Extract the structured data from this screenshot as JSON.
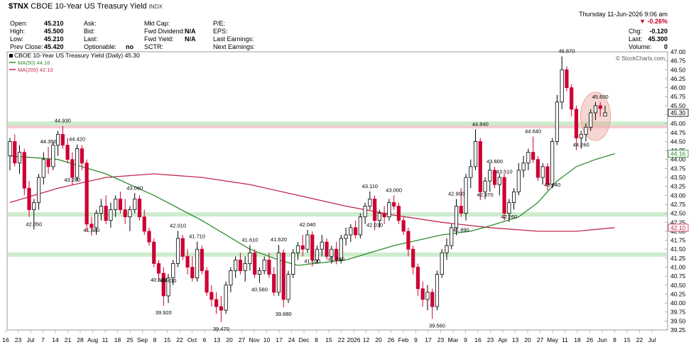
{
  "header": {
    "symbol": "$TNX",
    "name": "CBOE 10-Year US Treasury Yield",
    "exchange": "INDX",
    "date": "Thursday   11-Jun-2026  9:06 am",
    "open_label": "Open:",
    "open": "45.210",
    "high_label": "High:",
    "high": "45.500",
    "low_label": "Low:",
    "low": "45.210",
    "prev_label": "Prev Close:",
    "prev": "45.420",
    "ask_label": "Ask:",
    "bid_label": "Bid:",
    "last_label": "Last:",
    "optionable_label": "Optionable:",
    "optionable": "no",
    "mktcap_label": "Mkt Cap:",
    "fwddiv_label": "Fwd Dividend:",
    "fwddiv": "N/A",
    "fwdyield_label": "Fwd Yield:",
    "fwdyield": "N/A",
    "sctr_label": "SCTR:",
    "pe_label": "P/E:",
    "eps_label": "EPS:",
    "lastearn_label": "Last Earnings:",
    "nextearn_label": "Next Earnings:",
    "change_pct": "▼ -0.26%",
    "chg_label": "Chg:",
    "chg": "-0.120",
    "last2_label": "Last:",
    "last2": "45.300",
    "volume_label": "Volume:",
    "volume": "0",
    "watermark": "© StockCharts.com"
  },
  "colors": {
    "up": "#000000",
    "down": "#cc0033",
    "ma50": "#2e8b2e",
    "ma200": "#c0284c",
    "resistance_band": "#f7c9cf",
    "support_band": "#cdeccd",
    "highlight_circle": "#e8a59b"
  },
  "chart_data": {
    "type": "candlestick",
    "title": "CBOE 10-Year US Treasury Yield (Daily) 45.30",
    "legend": [
      {
        "name": "MA(50) 44.16",
        "color": "#2e8b2e"
      },
      {
        "name": "MA(200) 42.10",
        "color": "#c0284c"
      }
    ],
    "ylim": [
      39.25,
      47.0
    ],
    "y_ticks": [
      "39.25",
      "39.50",
      "39.75",
      "40.00",
      "40.25",
      "40.50",
      "40.75",
      "41.00",
      "41.25",
      "41.50",
      "41.75",
      "42.00",
      "42.25",
      "42.50",
      "42.75",
      "43.00",
      "43.25",
      "43.50",
      "43.75",
      "44.00",
      "44.25",
      "44.50",
      "44.75",
      "45.00",
      "45.25",
      "45.50",
      "45.75",
      "46.00",
      "46.25",
      "46.50",
      "46.75",
      "47.00"
    ],
    "x_ticks": [
      "16",
      "23",
      "Jul",
      "7",
      "14",
      "21",
      "28",
      "Aug",
      "11",
      "18",
      "25",
      "Sep",
      "8",
      "15",
      "22",
      "Oct",
      "6",
      "13",
      "20",
      "27",
      "Nov",
      "10",
      "17",
      "24",
      "Dec",
      "8",
      "15",
      "22",
      "2026",
      "12",
      "20",
      "26",
      "Feb",
      "9",
      "17",
      "23",
      "Mar",
      "9",
      "16",
      "23",
      "Apr",
      "13",
      "20",
      "27",
      "May",
      "11",
      "18",
      "26",
      "Jun",
      "8",
      "15",
      "22",
      "Jul"
    ],
    "horizontal_bands": [
      {
        "level": 44.93,
        "type": "resistance"
      },
      {
        "level": 42.47,
        "type": "support"
      },
      {
        "level": 41.35,
        "type": "support"
      },
      {
        "level": 45.0,
        "type": "support"
      }
    ],
    "last_value_labels": [
      {
        "value": "45.30",
        "series": "price"
      },
      {
        "value": "44.16",
        "series": "MA(50)"
      },
      {
        "value": "42.10",
        "series": "MA(200)"
      }
    ],
    "annotations": [
      {
        "text": "44.930",
        "bar": 11,
        "price": 44.93
      },
      {
        "text": "44.350",
        "bar": 8,
        "price": 44.35
      },
      {
        "text": "44.420",
        "bar": 14,
        "price": 44.42
      },
      {
        "text": "43.280",
        "bar": 13,
        "price": 43.28
      },
      {
        "text": "42.050",
        "bar": 5,
        "price": 42.05
      },
      {
        "text": "43.060",
        "bar": 26,
        "price": 43.06
      },
      {
        "text": "41.880",
        "bar": 17,
        "price": 41.88
      },
      {
        "text": "42.010",
        "bar": 35,
        "price": 42.01
      },
      {
        "text": "41.710",
        "bar": 39,
        "price": 41.71
      },
      {
        "text": "40.830",
        "bar": 31,
        "price": 40.83
      },
      {
        "text": "40.810",
        "bar": 33,
        "price": 40.81
      },
      {
        "text": "39.920",
        "bar": 32,
        "price": 39.92
      },
      {
        "text": "41.610",
        "bar": 50,
        "price": 41.61
      },
      {
        "text": "41.620",
        "bar": 56,
        "price": 41.62
      },
      {
        "text": "40.560",
        "bar": 52,
        "price": 40.56
      },
      {
        "text": "39.880",
        "bar": 57,
        "price": 39.88
      },
      {
        "text": "39.470",
        "bar": 44,
        "price": 39.47
      },
      {
        "text": "42.040",
        "bar": 62,
        "price": 42.04
      },
      {
        "text": "41.020",
        "bar": 63,
        "price": 41.02
      },
      {
        "text": "41.080",
        "bar": 68,
        "price": 41.08
      },
      {
        "text": "43.110",
        "bar": 75,
        "price": 43.11
      },
      {
        "text": "43.000",
        "bar": 80,
        "price": 43.0
      },
      {
        "text": "42.030",
        "bar": 76,
        "price": 42.03
      },
      {
        "text": "39.560",
        "bar": 89,
        "price": 39.56
      },
      {
        "text": "41.890",
        "bar": 94,
        "price": 41.89
      },
      {
        "text": "42.900",
        "bar": 93,
        "price": 42.9
      },
      {
        "text": "44.840",
        "bar": 98,
        "price": 44.84
      },
      {
        "text": "43.800",
        "bar": 101,
        "price": 43.8
      },
      {
        "text": "43.510",
        "bar": 103,
        "price": 43.51
      },
      {
        "text": "42.870",
        "bar": 99,
        "price": 42.87
      },
      {
        "text": "42.260",
        "bar": 104,
        "price": 42.26
      },
      {
        "text": "44.640",
        "bar": 109,
        "price": 44.64
      },
      {
        "text": "43.140",
        "bar": 113,
        "price": 43.14
      },
      {
        "text": "46.870",
        "bar": 116,
        "price": 46.87
      },
      {
        "text": "44.260",
        "bar": 119,
        "price": 44.26
      },
      {
        "text": "45.600",
        "bar": 123,
        "price": 45.6
      }
    ],
    "ohlc": [
      [
        44.1,
        44.6,
        43.7,
        44.5
      ],
      [
        44.5,
        44.7,
        43.8,
        43.9
      ],
      [
        43.9,
        44.4,
        43.6,
        44.2
      ],
      [
        44.2,
        44.3,
        43.0,
        43.2
      ],
      [
        43.2,
        43.4,
        42.4,
        42.6
      ],
      [
        42.6,
        42.9,
        42.05,
        42.8
      ],
      [
        42.8,
        43.6,
        42.6,
        43.5
      ],
      [
        43.5,
        44.2,
        43.3,
        44.0
      ],
      [
        44.0,
        44.35,
        43.6,
        43.8
      ],
      [
        43.8,
        44.5,
        43.7,
        44.4
      ],
      [
        44.4,
        44.8,
        44.1,
        44.7
      ],
      [
        44.7,
        44.93,
        44.3,
        44.4
      ],
      [
        44.4,
        44.6,
        43.9,
        44.0
      ],
      [
        44.0,
        44.2,
        43.28,
        43.5
      ],
      [
        43.5,
        44.42,
        43.4,
        44.3
      ],
      [
        44.3,
        44.4,
        43.7,
        43.9
      ],
      [
        43.9,
        44.0,
        42.0,
        42.2
      ],
      [
        42.2,
        42.4,
        41.88,
        42.1
      ],
      [
        42.1,
        42.6,
        41.9,
        42.5
      ],
      [
        42.5,
        42.9,
        42.3,
        42.7
      ],
      [
        42.7,
        43.0,
        42.2,
        42.3
      ],
      [
        42.3,
        42.8,
        42.1,
        42.6
      ],
      [
        42.6,
        43.0,
        42.4,
        42.9
      ],
      [
        42.9,
        43.1,
        42.5,
        42.6
      ],
      [
        42.6,
        42.9,
        42.2,
        42.4
      ],
      [
        42.4,
        42.7,
        42.0,
        42.6
      ],
      [
        42.6,
        43.06,
        42.5,
        42.9
      ],
      [
        42.9,
        43.0,
        42.3,
        42.4
      ],
      [
        42.4,
        42.6,
        41.9,
        42.0
      ],
      [
        42.0,
        42.1,
        41.6,
        41.7
      ],
      [
        41.7,
        41.8,
        41.0,
        41.1
      ],
      [
        41.1,
        41.2,
        40.6,
        40.83
      ],
      [
        40.83,
        41.0,
        39.92,
        40.2
      ],
      [
        40.2,
        40.81,
        40.0,
        40.7
      ],
      [
        40.7,
        41.2,
        40.5,
        41.1
      ],
      [
        41.1,
        42.01,
        41.0,
        41.8
      ],
      [
        41.8,
        41.9,
        41.2,
        41.3
      ],
      [
        41.3,
        41.5,
        40.8,
        41.0
      ],
      [
        41.0,
        41.3,
        40.6,
        40.7
      ],
      [
        40.7,
        41.71,
        40.6,
        41.5
      ],
      [
        41.5,
        41.6,
        40.8,
        40.9
      ],
      [
        40.9,
        41.0,
        40.2,
        40.3
      ],
      [
        40.3,
        40.5,
        39.9,
        40.1
      ],
      [
        40.1,
        40.3,
        39.7,
        39.9
      ],
      [
        39.9,
        40.2,
        39.47,
        39.8
      ],
      [
        39.8,
        40.6,
        39.7,
        40.5
      ],
      [
        40.5,
        41.0,
        40.3,
        40.9
      ],
      [
        40.9,
        41.3,
        40.7,
        41.2
      ],
      [
        41.2,
        41.4,
        40.8,
        40.9
      ],
      [
        40.9,
        41.3,
        40.6,
        41.1
      ],
      [
        41.1,
        41.61,
        40.9,
        41.4
      ],
      [
        41.4,
        41.5,
        40.7,
        40.8
      ],
      [
        40.8,
        41.0,
        40.56,
        40.9
      ],
      [
        40.9,
        41.3,
        40.8,
        41.2
      ],
      [
        41.2,
        41.4,
        40.7,
        40.8
      ],
      [
        40.8,
        41.0,
        40.2,
        40.3
      ],
      [
        40.3,
        41.62,
        40.2,
        41.4
      ],
      [
        41.4,
        41.5,
        39.88,
        40.1
      ],
      [
        40.1,
        40.9,
        40.0,
        40.8
      ],
      [
        40.8,
        41.5,
        40.7,
        41.4
      ],
      [
        41.4,
        41.7,
        41.2,
        41.6
      ],
      [
        41.6,
        41.9,
        41.3,
        41.5
      ],
      [
        41.5,
        42.04,
        41.4,
        41.9
      ],
      [
        41.9,
        42.0,
        41.02,
        41.2
      ],
      [
        41.2,
        41.6,
        41.1,
        41.5
      ],
      [
        41.5,
        41.9,
        41.3,
        41.7
      ],
      [
        41.7,
        41.8,
        41.2,
        41.3
      ],
      [
        41.3,
        41.6,
        41.1,
        41.5
      ],
      [
        41.5,
        41.7,
        41.08,
        41.2
      ],
      [
        41.2,
        41.9,
        41.1,
        41.8
      ],
      [
        41.8,
        42.1,
        41.6,
        41.9
      ],
      [
        41.9,
        42.2,
        41.7,
        42.1
      ],
      [
        42.1,
        42.3,
        41.8,
        41.9
      ],
      [
        41.9,
        42.5,
        41.8,
        42.4
      ],
      [
        42.4,
        42.8,
        42.2,
        42.7
      ],
      [
        42.7,
        43.11,
        42.6,
        42.9
      ],
      [
        42.9,
        43.0,
        42.03,
        42.3
      ],
      [
        42.3,
        42.6,
        42.1,
        42.5
      ],
      [
        42.5,
        42.7,
        42.2,
        42.4
      ],
      [
        42.4,
        42.9,
        42.3,
        42.8
      ],
      [
        42.8,
        43.0,
        42.6,
        42.7
      ],
      [
        42.7,
        42.8,
        42.2,
        42.3
      ],
      [
        42.3,
        42.4,
        41.9,
        42.0
      ],
      [
        42.0,
        42.1,
        41.3,
        41.5
      ],
      [
        41.5,
        41.6,
        40.8,
        41.0
      ],
      [
        41.0,
        41.1,
        40.2,
        40.4
      ],
      [
        40.4,
        40.6,
        39.9,
        40.1
      ],
      [
        40.1,
        40.5,
        39.8,
        40.3
      ],
      [
        40.3,
        40.4,
        39.56,
        39.9
      ],
      [
        39.9,
        40.9,
        39.8,
        40.8
      ],
      [
        40.8,
        41.5,
        40.7,
        41.4
      ],
      [
        41.4,
        41.8,
        41.2,
        41.6
      ],
      [
        41.6,
        42.2,
        41.5,
        42.1
      ],
      [
        42.1,
        42.9,
        41.89,
        42.7
      ],
      [
        42.7,
        43.2,
        42.4,
        42.5
      ],
      [
        42.5,
        43.6,
        42.3,
        43.5
      ],
      [
        43.5,
        44.0,
        43.2,
        43.8
      ],
      [
        43.8,
        44.84,
        43.7,
        44.5
      ],
      [
        44.5,
        44.6,
        42.87,
        43.1
      ],
      [
        43.1,
        43.5,
        42.9,
        43.4
      ],
      [
        43.4,
        43.9,
        43.1,
        43.7
      ],
      [
        43.7,
        43.8,
        43.2,
        43.3
      ],
      [
        43.3,
        43.6,
        43.0,
        43.5
      ],
      [
        43.5,
        43.6,
        42.3,
        42.5
      ],
      [
        42.5,
        42.9,
        42.26,
        42.8
      ],
      [
        42.8,
        43.2,
        42.6,
        43.1
      ],
      [
        43.1,
        43.9,
        43.0,
        43.7
      ],
      [
        43.7,
        44.1,
        43.5,
        43.9
      ],
      [
        43.9,
        44.3,
        43.7,
        44.2
      ],
      [
        44.2,
        44.64,
        43.9,
        44.0
      ],
      [
        44.0,
        44.1,
        43.4,
        43.5
      ],
      [
        43.5,
        43.9,
        43.3,
        43.8
      ],
      [
        43.8,
        43.9,
        43.14,
        43.3
      ],
      [
        43.3,
        44.6,
        43.2,
        44.5
      ],
      [
        44.5,
        45.8,
        44.4,
        45.6
      ],
      [
        45.6,
        46.87,
        45.4,
        46.5
      ],
      [
        46.5,
        46.6,
        45.9,
        46.0
      ],
      [
        46.0,
        46.1,
        45.2,
        45.4
      ],
      [
        45.4,
        45.5,
        44.26,
        44.6
      ],
      [
        44.6,
        44.8,
        44.3,
        44.7
      ],
      [
        44.7,
        45.0,
        44.5,
        44.9
      ],
      [
        44.9,
        45.4,
        44.8,
        45.3
      ],
      [
        45.3,
        45.6,
        45.1,
        45.5
      ],
      [
        45.5,
        45.6,
        45.2,
        45.42
      ],
      [
        45.21,
        45.5,
        45.21,
        45.3
      ]
    ],
    "ma50": [
      [
        0,
        44.1
      ],
      [
        10,
        44.0
      ],
      [
        20,
        43.6
      ],
      [
        30,
        43.0
      ],
      [
        40,
        42.3
      ],
      [
        50,
        41.5
      ],
      [
        56,
        41.2
      ],
      [
        60,
        41.05
      ],
      [
        70,
        41.2
      ],
      [
        80,
        41.6
      ],
      [
        90,
        41.9
      ],
      [
        96,
        42.0
      ],
      [
        100,
        42.15
      ],
      [
        106,
        42.4
      ],
      [
        110,
        42.8
      ],
      [
        114,
        43.4
      ],
      [
        118,
        43.8
      ],
      [
        122,
        44.0
      ],
      [
        126,
        44.16
      ]
    ],
    "ma200": [
      [
        0,
        42.8
      ],
      [
        10,
        43.2
      ],
      [
        20,
        43.5
      ],
      [
        30,
        43.6
      ],
      [
        40,
        43.5
      ],
      [
        50,
        43.3
      ],
      [
        60,
        43.0
      ],
      [
        70,
        42.7
      ],
      [
        80,
        42.45
      ],
      [
        90,
        42.25
      ],
      [
        100,
        42.1
      ],
      [
        110,
        42.0
      ],
      [
        118,
        42.0
      ],
      [
        126,
        42.1
      ]
    ]
  }
}
